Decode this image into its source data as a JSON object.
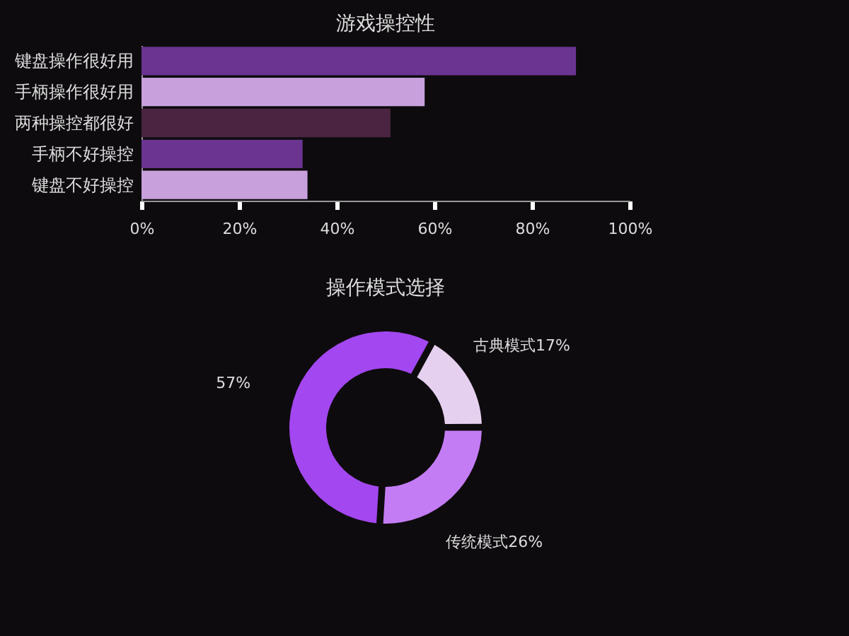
{
  "chart_data": [
    {
      "type": "bar",
      "orientation": "horizontal",
      "title": "游戏操控性",
      "categories": [
        "键盘操作很好用",
        "手柄操作很好用",
        "两种操控都很好",
        "手柄不好操控",
        "键盘不好操控"
      ],
      "values": [
        89,
        58,
        51,
        33,
        34
      ],
      "colors": [
        "#6a3490",
        "#c7a0dc",
        "#4a2440",
        "#6a3490",
        "#c7a0dc"
      ],
      "xlim": [
        0,
        100
      ],
      "xticks": [
        {
          "value": 0,
          "label": "0%"
        },
        {
          "value": 20,
          "label": "20%"
        },
        {
          "value": 40,
          "label": "40%"
        },
        {
          "value": 60,
          "label": "60%"
        },
        {
          "value": 80,
          "label": "80%"
        },
        {
          "value": 100,
          "label": "100%"
        }
      ],
      "grid": false
    },
    {
      "type": "donut",
      "title": "操作模式选择",
      "categories": [
        "古典模式",
        "传统模式",
        null
      ],
      "values": [
        17,
        26,
        57
      ],
      "colors": [
        "#e6d0f0",
        "#c47cf5",
        "#a347f0"
      ],
      "value_labels": [
        "17%",
        "26%",
        "57%"
      ]
    }
  ]
}
